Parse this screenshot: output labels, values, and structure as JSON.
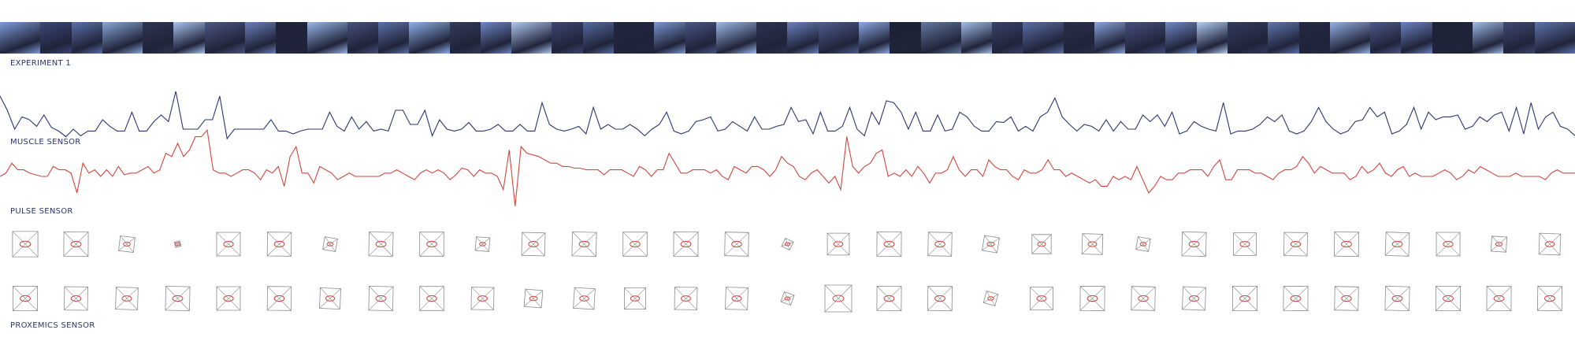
{
  "labels": {
    "experiment": "EXPERIMENT 1",
    "muscle": "MUSCLE SENSOR",
    "pulse": "PULSE SENSOR",
    "proxemics": "PROXEMICS SENSOR"
  },
  "colors": {
    "muscle_line": "#2b3672",
    "pulse_line": "#d2463f",
    "glyph_box": "#8a8a8a",
    "glyph_accent": "#d2463f"
  },
  "photo_strip": {
    "tiles": [
      "#7e9ad8",
      "#3a4778",
      "#5b6fa8",
      "#8aa6d8",
      "#2e3550",
      "#a9c3ee",
      "#4a5680",
      "#6a7fb8",
      "#1f2238",
      "#9ab6ea",
      "#45507a",
      "#5c70a8",
      "#8fb0e8",
      "#333a58",
      "#6f86c2",
      "#b0c8f0",
      "#3d4670",
      "#566aa0",
      "#22263c",
      "#7d96d0",
      "#485484",
      "#9fbaea",
      "#2c3250",
      "#6b80bc",
      "#4f5c8e",
      "#8da8e0",
      "#1c2034",
      "#62779e",
      "#a4bee8",
      "#39416a",
      "#5a6ea6",
      "#2a2f4a",
      "#8ba4dc",
      "#454f7e",
      "#7188c4",
      "#b4ccf2",
      "#333b5e",
      "#5f74ac",
      "#25293f",
      "#96b0e4",
      "#4c5888",
      "#6c82be",
      "#1e2237",
      "#a0bae8",
      "#3f4872",
      "#5d72aa"
    ]
  },
  "chart_data": [
    {
      "type": "line",
      "series": [
        {
          "values": [
            50,
            35,
            15,
            28,
            25,
            18,
            30,
            17,
            13,
            7,
            15,
            8,
            13,
            13,
            25,
            18,
            13,
            13,
            33,
            13,
            13,
            23,
            30,
            23,
            55,
            15,
            15,
            15,
            25,
            25,
            50,
            5,
            15,
            15,
            15,
            15,
            15,
            25,
            13,
            13,
            10,
            13,
            15,
            15,
            15,
            33,
            18,
            13,
            28,
            15,
            23,
            13,
            15,
            13,
            35,
            35,
            20,
            20,
            35,
            8,
            25,
            15,
            13,
            15,
            22,
            13,
            13,
            15,
            20,
            13,
            13,
            20,
            13,
            13,
            43,
            20,
            15,
            13,
            15,
            18,
            10,
            38,
            15,
            20,
            15,
            15,
            20,
            15,
            8,
            15,
            20,
            33,
            13,
            10,
            13,
            23,
            25,
            28,
            13,
            15,
            23,
            18,
            13,
            28,
            15,
            15,
            18,
            20,
            38,
            23,
            25,
            10,
            33,
            13,
            13,
            18,
            38,
            15,
            8,
            33,
            20,
            45,
            43,
            33,
            15,
            33,
            13,
            13,
            30,
            13,
            15,
            33,
            28,
            18,
            13,
            13,
            23,
            22,
            28,
            13,
            18,
            13,
            28,
            33,
            48,
            28,
            20,
            13,
            20,
            18,
            13,
            25,
            13,
            23,
            15,
            15,
            30,
            23,
            30,
            18,
            33,
            10,
            13,
            23,
            18,
            15,
            13,
            43,
            10,
            13,
            13,
            15,
            20,
            28,
            23,
            30,
            13,
            10,
            13,
            23,
            38,
            23,
            15,
            10,
            13,
            23,
            25,
            38,
            28,
            33,
            10,
            13,
            20,
            38,
            15,
            33,
            25,
            28,
            28,
            30,
            15,
            18,
            28,
            23,
            30,
            33,
            13,
            38,
            10,
            43,
            15,
            28,
            33,
            18,
            15,
            8
          ]
        }
      ],
      "ylim": [
        0,
        100
      ]
    },
    {
      "type": "line",
      "series": [
        {
          "values": [
            60,
            62,
            68,
            64,
            64,
            62,
            61,
            60,
            60,
            66,
            64,
            64,
            62,
            50,
            68,
            62,
            64,
            60,
            64,
            60,
            66,
            61,
            62,
            62,
            64,
            66,
            62,
            64,
            74,
            72,
            80,
            72,
            76,
            84,
            84,
            88,
            64,
            62,
            62,
            60,
            62,
            64,
            64,
            62,
            58,
            64,
            62,
            66,
            54,
            72,
            78,
            62,
            62,
            56,
            66,
            64,
            62,
            58,
            60,
            62,
            60,
            60,
            60,
            60,
            60,
            62,
            62,
            64,
            62,
            60,
            58,
            62,
            64,
            62,
            64,
            62,
            58,
            61,
            65,
            64,
            60,
            64,
            62,
            62,
            60,
            52,
            76,
            42,
            78,
            74,
            73,
            72,
            70,
            68,
            68,
            66,
            66,
            65,
            65,
            64,
            64,
            64,
            61,
            64,
            64,
            64,
            62,
            60,
            66,
            64,
            60,
            64,
            64,
            74,
            68,
            62,
            62,
            64,
            64,
            64,
            62,
            64,
            60,
            58,
            66,
            64,
            62,
            66,
            66,
            64,
            60,
            64,
            72,
            68,
            66,
            60,
            58,
            62,
            64,
            60,
            56,
            60,
            52,
            84,
            66,
            62,
            66,
            68,
            74,
            76,
            60,
            62,
            60,
            64,
            60,
            66,
            62,
            56,
            62,
            62,
            64,
            72,
            64,
            60,
            64,
            64,
            60,
            70,
            66,
            64,
            64,
            60,
            58,
            64,
            62,
            62,
            64,
            70,
            64,
            64,
            60,
            62,
            60,
            58,
            56,
            58,
            54,
            54,
            60,
            58,
            60,
            58,
            66,
            58,
            50,
            54,
            60,
            58,
            58,
            62,
            62,
            64,
            64,
            64,
            60,
            66,
            70,
            58,
            58,
            64,
            64,
            64,
            62,
            62,
            60,
            58,
            62,
            64,
            64,
            66,
            72,
            68,
            62,
            66,
            64,
            62,
            62,
            62,
            58,
            60,
            66,
            62,
            64,
            68,
            62,
            60,
            64,
            66,
            60,
            62,
            60,
            60,
            60,
            62,
            64,
            62,
            58,
            60,
            64,
            62,
            66,
            64,
            62,
            60,
            60,
            60,
            62,
            60,
            60,
            60,
            60,
            58,
            62,
            64,
            62,
            62,
            62
          ]
        }
      ],
      "ylim": [
        0,
        100
      ]
    }
  ],
  "glyph_rows": [
    [
      0.95,
      0.92,
      0.62,
      0.25,
      0.88,
      0.9,
      0.55,
      0.92,
      0.9,
      0.55,
      0.88,
      0.92,
      0.9,
      0.92,
      0.9,
      0.45,
      0.82,
      0.92,
      0.9,
      0.65,
      0.72,
      0.78,
      0.55,
      0.92,
      0.85,
      0.88,
      0.92,
      0.9,
      0.88,
      0.6,
      0.82
    ],
    [
      0.92,
      0.88,
      0.85,
      0.92,
      0.88,
      0.9,
      0.8,
      0.92,
      0.9,
      0.85,
      0.7,
      0.82,
      0.8,
      0.85,
      0.85,
      0.5,
      1.0,
      0.92,
      0.92,
      0.55,
      0.85,
      0.92,
      0.9,
      0.88,
      0.92,
      0.92,
      0.9,
      0.92,
      0.92,
      0.92,
      0.92
    ]
  ]
}
